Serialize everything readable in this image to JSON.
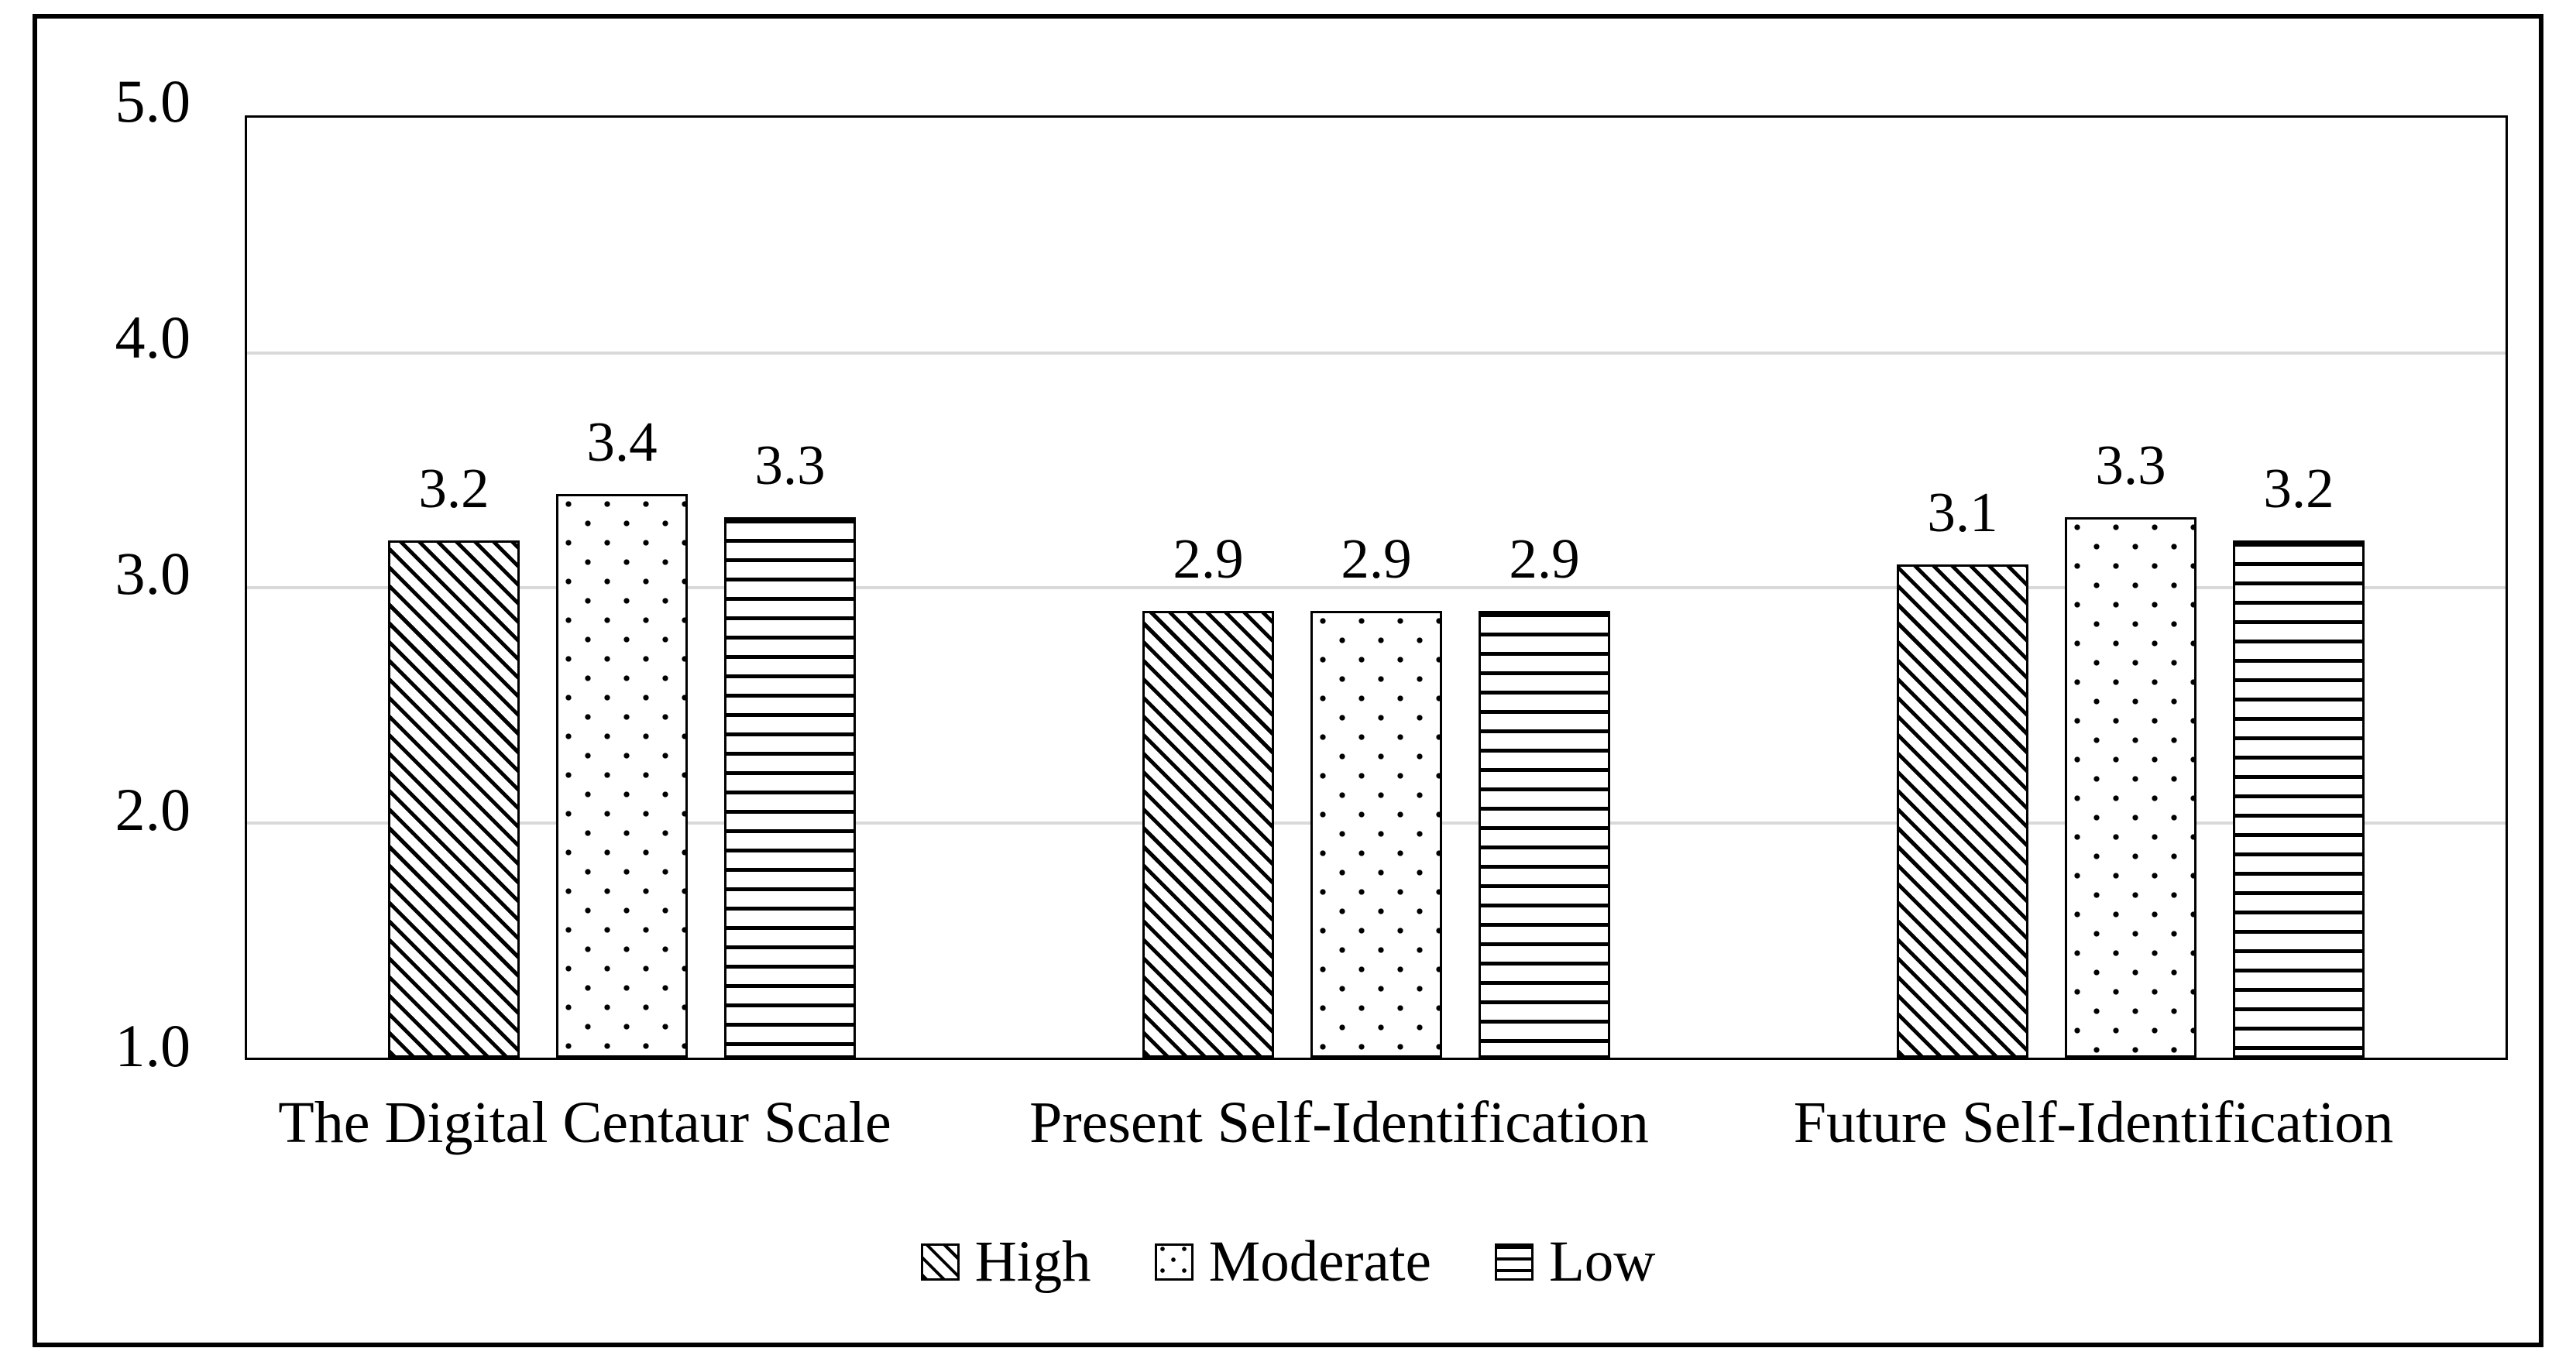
{
  "chart_data": {
    "type": "bar",
    "title": "",
    "categories": [
      "The Digital Centaur Scale",
      "Present Self-Identification",
      "Future Self-Identification"
    ],
    "series": [
      {
        "name": "High",
        "pattern": "diagonal-hatch",
        "values": [
          3.2,
          2.9,
          3.1
        ]
      },
      {
        "name": "Moderate",
        "pattern": "dots",
        "values": [
          3.4,
          2.9,
          3.3
        ]
      },
      {
        "name": "Low",
        "pattern": "horizontal-lines",
        "values": [
          3.3,
          2.9,
          3.2
        ]
      }
    ],
    "data_labels": {
      "High": [
        "3.2",
        "2.9",
        "3.1"
      ],
      "Moderate": [
        "3.4",
        "2.9",
        "3.3"
      ],
      "Low": [
        "3.3",
        "2.9",
        "3.2"
      ]
    },
    "y_axis": {
      "min": 1.0,
      "max": 5.0,
      "tick_labels": [
        "5.0",
        "4.0",
        "3.0",
        "2.0",
        "1.0"
      ],
      "gridline_values": [
        4.0,
        3.0,
        2.0
      ]
    },
    "xlabel": "",
    "ylabel": "",
    "legend": {
      "position": "bottom",
      "labels": [
        "High",
        "Moderate",
        "Low"
      ]
    },
    "grid": "horizontal",
    "colors": {
      "bar_fill": "#ffffff",
      "pattern_ink": "#000000",
      "gridline": "#d9d9d9",
      "axis": "#000000",
      "text": "#000000",
      "background": "#ffffff"
    }
  }
}
